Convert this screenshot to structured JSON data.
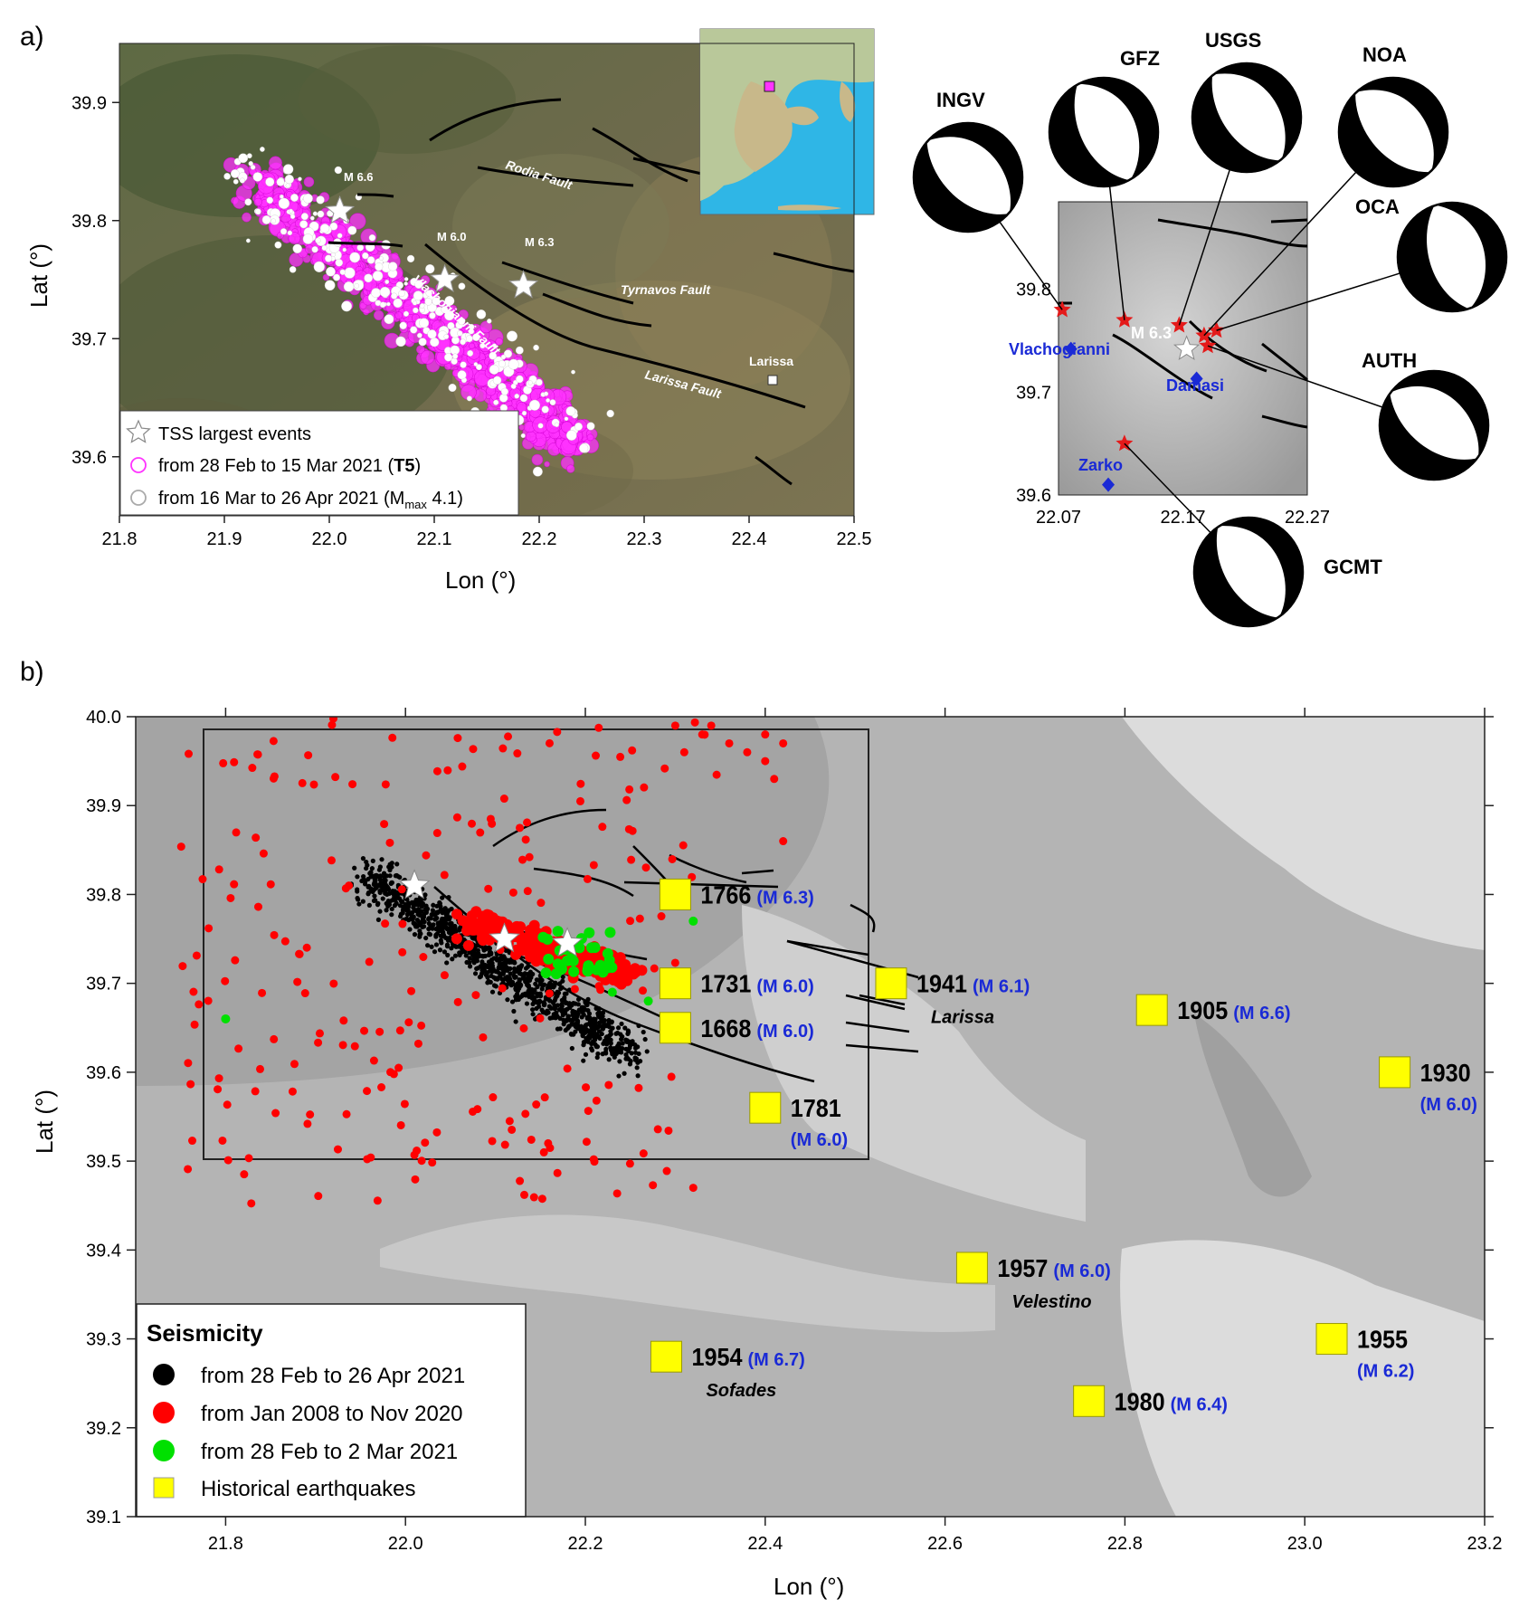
{
  "panel_a": {
    "label": "a)",
    "map": {
      "x_label": "Lon (°)",
      "y_label": "Lat (°)",
      "x_ticks": [
        "21.8",
        "21.9",
        "22.0",
        "22.1",
        "22.2",
        "22.3",
        "22.4",
        "22.5"
      ],
      "y_ticks": [
        "39.6",
        "39.7",
        "39.8",
        "39.9"
      ],
      "fault_labels": [
        "Rodia Fault",
        "Tyrnavos Fault",
        "Vlachogianni Fault",
        "Larissa Fault"
      ],
      "event_labels": [
        "M 6.6",
        "M 6.0",
        "M 6.3"
      ],
      "city": "Larissa",
      "legend": [
        {
          "text": "TSS largest events",
          "symbol": "white-star"
        },
        {
          "text": "from 28 Feb to 15 Mar 2021 (",
          "bold": "T5",
          ")": ")",
          "symbol": "magenta-circle"
        },
        {
          "text": "from 16 Mar to 26 Apr 2021 (M",
          "sub": "max",
          "tail": " 4.1)",
          "symbol": "white-circle"
        }
      ]
    },
    "focal_map": {
      "x_ticks": [
        "22.07",
        "22.17",
        "22.27"
      ],
      "y_ticks": [
        "39.6",
        "39.7",
        "39.8"
      ],
      "event_label": "M 6.3",
      "places": [
        "Vlachogianni",
        "Damasi",
        "Zarko"
      ],
      "agencies": [
        "INGV",
        "GFZ",
        "USGS",
        "NOA",
        "OCA",
        "AUTH",
        "GCMT"
      ]
    }
  },
  "panel_b": {
    "label": "b)",
    "x_label": "Lon (°)",
    "y_label": "Lat (°)",
    "x_ticks": [
      "21.8",
      "22.0",
      "22.2",
      "22.4",
      "22.6",
      "22.8",
      "23.0",
      "23.2"
    ],
    "y_ticks": [
      "39.1",
      "39.2",
      "39.3",
      "39.4",
      "39.5",
      "39.6",
      "39.7",
      "39.8",
      "39.9",
      "40.0"
    ],
    "legend": {
      "title": "Seismicity",
      "items": [
        {
          "text": "from 28 Feb to 26 Apr  2021",
          "color": "#000000"
        },
        {
          "text": "from Jan 2008 to Nov 2020",
          "color": "#ff0000"
        },
        {
          "text": "from 28 Feb to 2 Mar 2021",
          "color": "#00e000"
        },
        {
          "text": "Historical earthquakes",
          "color": "#ffff00"
        }
      ]
    },
    "historical": [
      {
        "year": "1766",
        "mag": "(M 6.3)",
        "lon": 22.3,
        "lat": 39.8
      },
      {
        "year": "1731",
        "mag": "(M 6.0)",
        "lon": 22.3,
        "lat": 39.7
      },
      {
        "year": "1668",
        "mag": "(M 6.0)",
        "lon": 22.3,
        "lat": 39.65
      },
      {
        "year": "1781",
        "mag": "(M 6.0)",
        "lon": 22.4,
        "lat": 39.56
      },
      {
        "year": "1941",
        "mag": "(M 6.1)",
        "lon": 22.54,
        "lat": 39.7,
        "place": "Larissa"
      },
      {
        "year": "1905",
        "mag": "(M 6.6)",
        "lon": 22.83,
        "lat": 39.67
      },
      {
        "year": "1930",
        "mag": "(M 6.0)",
        "lon": 23.1,
        "lat": 39.6
      },
      {
        "year": "1957",
        "mag": "(M 6.0)",
        "lon": 22.63,
        "lat": 39.38,
        "place": "Velestino"
      },
      {
        "year": "1954",
        "mag": "(M 6.7)",
        "lon": 22.29,
        "lat": 39.28,
        "place": "Sofades"
      },
      {
        "year": "1955",
        "mag": "(M 6.2)",
        "lon": 23.03,
        "lat": 39.3
      },
      {
        "year": "1980",
        "mag": "(M 6.4)",
        "lon": 22.76,
        "lat": 39.23
      }
    ]
  },
  "colors": {
    "magenta": "#ff33ff",
    "red": "#ff0000",
    "green": "#00e000",
    "yellow": "#ffff00",
    "blue_text": "#1a2ad6"
  }
}
